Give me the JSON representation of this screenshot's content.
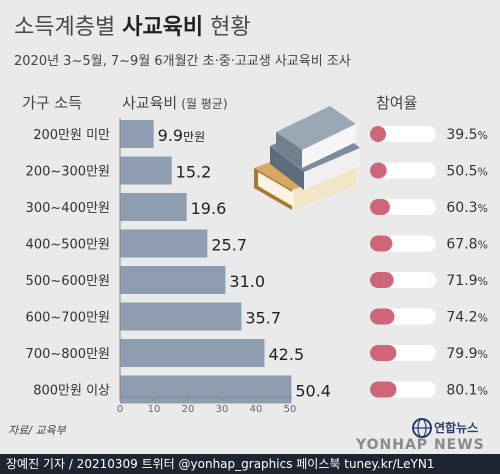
{
  "header": {
    "title_prefix": "소득계층별 ",
    "title_bold": "사교육비",
    "title_suffix": " 현황",
    "subtitle": "2020년 3~5월, 7~9월 6개월간 초·중·고교생 사교육비 조사"
  },
  "columns": {
    "income": "가구 소득",
    "spending": "사교육비",
    "spending_unit": "(월 평균)",
    "participation": "참여율"
  },
  "source": "자료/ 교육부",
  "footer": {
    "credit": "장예진 기자 / 20210309 트위터 @yonhap_graphics  페이스북 tuney.kr/LeYN1",
    "logo": "연합뉴스",
    "watermark": "YONHAP NEWS"
  },
  "colors": {
    "bar": "#8e9eb0",
    "pct_fill": "#cf6677",
    "pct_track": "#ffffff",
    "footer_bg": "#1e2530"
  },
  "chart_data": {
    "type": "bar",
    "orientation": "horizontal",
    "categories": [
      "200만원 미만",
      "200~300만원",
      "300~400만원",
      "400~500만원",
      "500~600만원",
      "600~700만원",
      "700~800만원",
      "800만원 이상"
    ],
    "series": [
      {
        "values": [
          9.9,
          15.2,
          19.6,
          25.7,
          31.0,
          35.7,
          42.5,
          50.4
        ],
        "labels": [
          "9.9",
          "15.2",
          "19.6",
          "25.7",
          "31.0",
          "35.7",
          "42.5",
          "50.4"
        ],
        "first_label_unit": "만원"
      }
    ],
    "participation": {
      "values": [
        39.5,
        50.5,
        60.3,
        67.8,
        71.9,
        74.2,
        79.9,
        80.1
      ],
      "labels": [
        "39.5",
        "50.5",
        "60.3",
        "67.8",
        "71.9",
        "74.2",
        "79.9",
        "80.1"
      ],
      "unit": "%"
    },
    "xticks": [
      0,
      10,
      20,
      30,
      40,
      50
    ],
    "xlim": [
      0,
      52
    ],
    "grid": false
  }
}
